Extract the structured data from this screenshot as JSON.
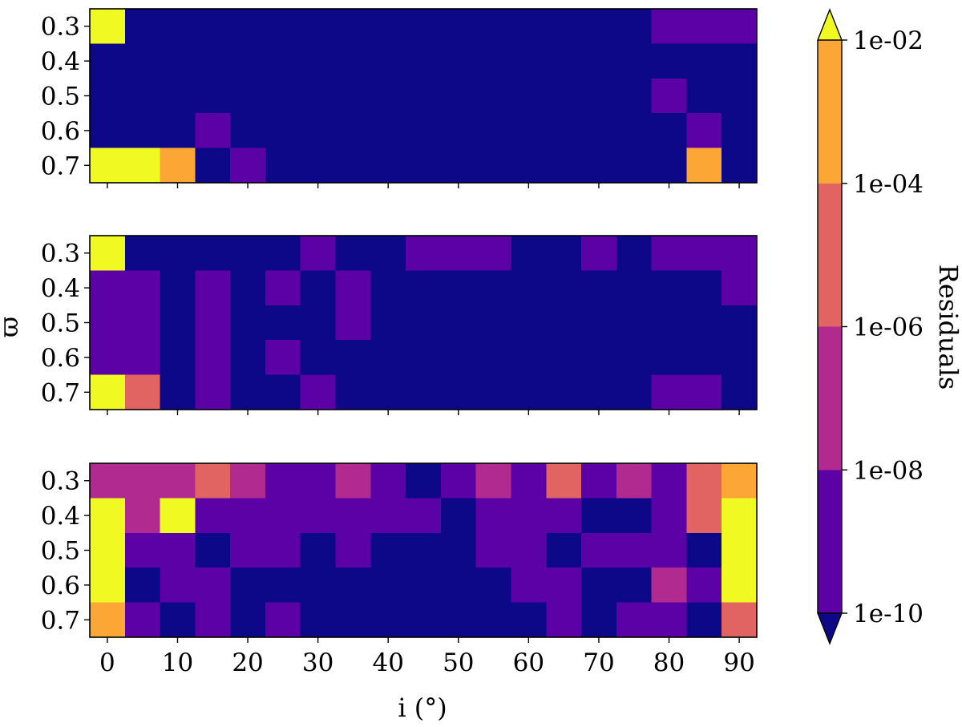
{
  "chart_data": {
    "type": "heatmap",
    "panel_count": 3,
    "x_values": [
      0,
      5,
      10,
      15,
      20,
      25,
      30,
      35,
      40,
      45,
      50,
      55,
      60,
      65,
      70,
      75,
      80,
      85,
      90
    ],
    "y_values": [
      0.3,
      0.4,
      0.5,
      0.6,
      0.7
    ],
    "xlim": [
      -2.5,
      92.5
    ],
    "x_ticks": [
      0,
      10,
      20,
      30,
      40,
      50,
      60,
      70,
      80,
      90
    ],
    "x_tick_labels": [
      "0",
      "10",
      "20",
      "30",
      "40",
      "50",
      "60",
      "70",
      "80",
      "90"
    ],
    "y_tick_labels": [
      "0.3",
      "0.4",
      "0.5",
      "0.6",
      "0.7"
    ],
    "xlabel": "i (°)",
    "ylabel": "ϖ",
    "colorbar": {
      "label": "Residuals",
      "scale": "log",
      "boundaries": [
        1e-10,
        1e-08,
        1e-06,
        0.0001,
        0.01
      ],
      "tick_labels": [
        "1e-10",
        "1e-08",
        "1e-06",
        "1e-04",
        "1e-02"
      ],
      "extend": "both",
      "bin_colors": [
        "#5c01a6",
        "#b12a90",
        "#e16462",
        "#fca636"
      ],
      "under_color": "#0d0887",
      "over_color": "#f0f921"
    },
    "panels": [
      {
        "note": "log10 residual level per cell; rows ordered 0.3..0.7, columns i = 0..90",
        "levels": [
          [
            -1,
            -11,
            -11,
            -11,
            -11,
            -11,
            -11,
            -11,
            -11,
            -11,
            -11,
            -11,
            -11,
            -11,
            -11,
            -11,
            -9,
            -9,
            -9
          ],
          [
            -11,
            -11,
            -11,
            -11,
            -11,
            -11,
            -11,
            -11,
            -11,
            -11,
            -11,
            -11,
            -11,
            -11,
            -11,
            -11,
            -11,
            -11,
            -11
          ],
          [
            -11,
            -11,
            -11,
            -11,
            -11,
            -11,
            -11,
            -11,
            -11,
            -11,
            -11,
            -11,
            -11,
            -11,
            -11,
            -11,
            -9,
            -11,
            -11
          ],
          [
            -11,
            -11,
            -11,
            -9,
            -11,
            -11,
            -11,
            -11,
            -11,
            -11,
            -11,
            -11,
            -11,
            -11,
            -11,
            -11,
            -11,
            -9,
            -11
          ],
          [
            -1,
            -1,
            -3,
            -11,
            -9,
            -11,
            -11,
            -11,
            -11,
            -11,
            -11,
            -11,
            -11,
            -11,
            -11,
            -11,
            -11,
            -3,
            -11
          ]
        ]
      },
      {
        "note": "log10 residual level per cell; rows ordered 0.3..0.7, columns i = 0..90",
        "levels": [
          [
            -1,
            -11,
            -11,
            -11,
            -11,
            -11,
            -9,
            -11,
            -11,
            -9,
            -9,
            -9,
            -11,
            -11,
            -9,
            -11,
            -9,
            -9,
            -9
          ],
          [
            -9,
            -9,
            -11,
            -9,
            -11,
            -9,
            -11,
            -9,
            -11,
            -11,
            -11,
            -11,
            -11,
            -11,
            -11,
            -11,
            -11,
            -11,
            -9
          ],
          [
            -9,
            -9,
            -11,
            -9,
            -11,
            -11,
            -11,
            -9,
            -11,
            -11,
            -11,
            -11,
            -11,
            -11,
            -11,
            -11,
            -11,
            -11,
            -11
          ],
          [
            -9,
            -9,
            -11,
            -9,
            -11,
            -9,
            -11,
            -11,
            -11,
            -11,
            -11,
            -11,
            -11,
            -11,
            -11,
            -11,
            -11,
            -11,
            -11
          ],
          [
            -1,
            -5,
            -11,
            -9,
            -11,
            -11,
            -9,
            -11,
            -11,
            -11,
            -11,
            -11,
            -11,
            -11,
            -11,
            -11,
            -9,
            -9,
            -11
          ]
        ]
      },
      {
        "note": "log10 residual level per cell; rows ordered 0.3..0.7, columns i = 0..90",
        "levels": [
          [
            -7,
            -7,
            -7,
            -5,
            -7,
            -9,
            -9,
            -7,
            -9,
            -11,
            -9,
            -7,
            -9,
            -5,
            -9,
            -7,
            -9,
            -5,
            -3
          ],
          [
            -1,
            -7,
            -1,
            -9,
            -9,
            -9,
            -9,
            -9,
            -9,
            -9,
            -11,
            -9,
            -9,
            -9,
            -11,
            -11,
            -9,
            -5,
            -1
          ],
          [
            -1,
            -9,
            -9,
            -11,
            -9,
            -9,
            -11,
            -9,
            -11,
            -11,
            -11,
            -9,
            -9,
            -11,
            -9,
            -9,
            -9,
            -11,
            -1
          ],
          [
            -1,
            -11,
            -9,
            -9,
            -11,
            -11,
            -11,
            -11,
            -11,
            -11,
            -11,
            -11,
            -9,
            -9,
            -11,
            -11,
            -7,
            -9,
            -1
          ],
          [
            -3,
            -9,
            -11,
            -9,
            -11,
            -9,
            -11,
            -11,
            -11,
            -11,
            -11,
            -11,
            -11,
            -9,
            -11,
            -9,
            -9,
            -11,
            -5
          ]
        ]
      }
    ]
  }
}
